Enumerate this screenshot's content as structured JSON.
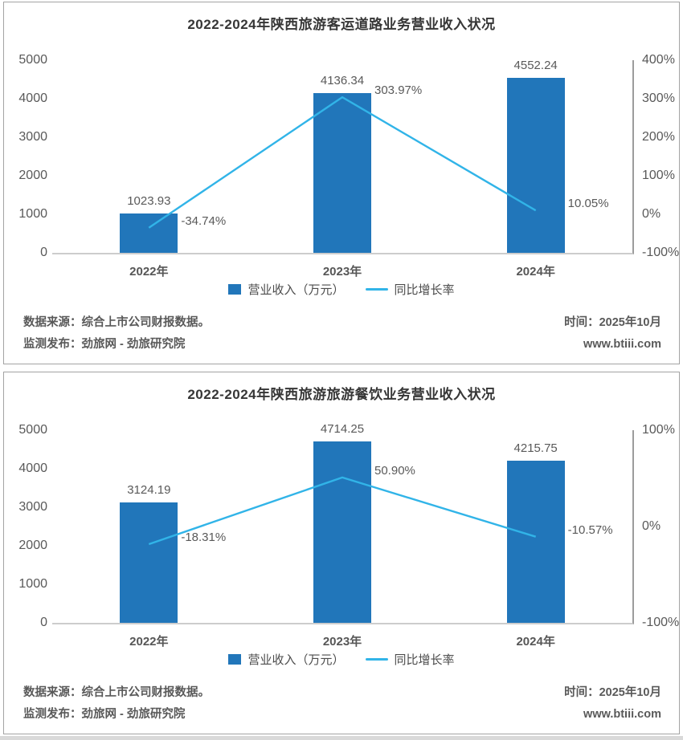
{
  "charts": [
    {
      "title": "2022-2024年陕西旅游客运道路业务营业收入状况",
      "chart_data": {
        "type": "bar+line combo",
        "categories": [
          "2022年",
          "2023年",
          "2024年"
        ],
        "series": [
          {
            "name": "营业收入（万元）",
            "type": "bar",
            "axis": "left",
            "values": [
              1023.93,
              4136.34,
              4552.24
            ],
            "labels": [
              "1023.93",
              "4136.34",
              "4552.24"
            ],
            "color": "#2176BA"
          },
          {
            "name": "同比增长率",
            "type": "line",
            "axis": "right",
            "values": [
              -34.74,
              303.97,
              10.05
            ],
            "labels": [
              "-34.74%",
              "303.97%",
              "10.05%"
            ],
            "color": "#31B4E8"
          }
        ],
        "left_axis": {
          "min": 0,
          "max": 5000,
          "ticks": [
            "5000",
            "4000",
            "3000",
            "2000",
            "1000",
            "0"
          ]
        },
        "right_axis": {
          "min": -100,
          "max": 400,
          "ticks": [
            "400%",
            "300%",
            "200%",
            "100%",
            "0%",
            "-100%"
          ]
        },
        "grid": false,
        "legend_position": "bottom"
      },
      "footer": {
        "source": "数据来源：综合上市公司财报数据。",
        "publisher": "监测发布：劲旅网 - 劲旅研究院",
        "time": "时间：2025年10月",
        "website": "www.btiii.com"
      }
    },
    {
      "title": "2022-2024年陕西旅游旅游餐饮业务营业收入状况",
      "chart_data": {
        "type": "bar+line combo",
        "categories": [
          "2022年",
          "2023年",
          "2024年"
        ],
        "series": [
          {
            "name": "营业收入（万元）",
            "type": "bar",
            "axis": "left",
            "values": [
              3124.19,
              4714.25,
              4215.75
            ],
            "labels": [
              "3124.19",
              "4714.25",
              "4215.75"
            ],
            "color": "#2176BA"
          },
          {
            "name": "同比增长率",
            "type": "line",
            "axis": "right",
            "values": [
              -18.31,
              50.9,
              -10.57
            ],
            "labels": [
              "-18.31%",
              "50.90%",
              "-10.57%"
            ],
            "color": "#31B4E8"
          }
        ],
        "left_axis": {
          "min": 0,
          "max": 5000,
          "ticks": [
            "5000",
            "4000",
            "3000",
            "2000",
            "1000",
            "0"
          ]
        },
        "right_axis": {
          "min": -100,
          "max": 100,
          "ticks": [
            "100%",
            "0%",
            "-100%"
          ]
        },
        "grid": false,
        "legend_position": "bottom"
      },
      "footer": {
        "source": "数据来源：综合上市公司财报数据。",
        "publisher": "监测发布：劲旅网 - 劲旅研究院",
        "time": "时间：2025年10月",
        "website": "www.btiii.com"
      }
    }
  ],
  "colors": {
    "bar": "#2176BA",
    "line": "#31B4E8",
    "text_gray": "#595959",
    "title": "#363636",
    "baseline": "#cdcdcd",
    "axis_line": "#9c9c9c",
    "panel_border": "#a3a3a3"
  }
}
